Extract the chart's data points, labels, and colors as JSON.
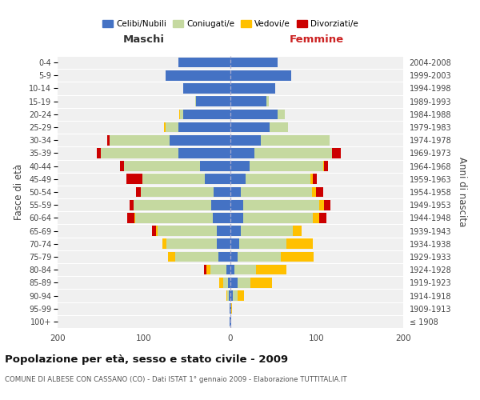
{
  "age_groups": [
    "100+",
    "95-99",
    "90-94",
    "85-89",
    "80-84",
    "75-79",
    "70-74",
    "65-69",
    "60-64",
    "55-59",
    "50-54",
    "45-49",
    "40-44",
    "35-39",
    "30-34",
    "25-29",
    "20-24",
    "15-19",
    "10-14",
    "5-9",
    "0-4"
  ],
  "birth_years": [
    "≤ 1908",
    "1909-1913",
    "1914-1918",
    "1919-1923",
    "1924-1928",
    "1929-1933",
    "1934-1938",
    "1939-1943",
    "1944-1948",
    "1949-1953",
    "1954-1958",
    "1959-1963",
    "1964-1968",
    "1969-1973",
    "1974-1978",
    "1979-1983",
    "1984-1988",
    "1989-1993",
    "1994-1998",
    "1999-2003",
    "2004-2008"
  ],
  "colors": {
    "celibe": "#4472C4",
    "coniugato": "#c5d9a0",
    "vedovo": "#ffc000",
    "divorziato": "#cc0000"
  },
  "maschi": {
    "celibe": [
      1,
      1,
      2,
      3,
      5,
      14,
      16,
      16,
      20,
      22,
      19,
      30,
      35,
      60,
      70,
      60,
      55,
      40,
      55,
      75,
      60
    ],
    "coniugato": [
      0,
      0,
      2,
      5,
      18,
      50,
      58,
      68,
      90,
      90,
      85,
      72,
      88,
      90,
      70,
      15,
      3,
      1,
      0,
      0,
      0
    ],
    "vedovo": [
      0,
      0,
      1,
      5,
      5,
      8,
      5,
      2,
      1,
      0,
      0,
      0,
      0,
      0,
      0,
      2,
      1,
      0,
      0,
      0,
      0
    ],
    "divorziato": [
      0,
      0,
      0,
      0,
      3,
      0,
      0,
      5,
      8,
      5,
      5,
      18,
      5,
      5,
      3,
      0,
      0,
      0,
      0,
      0,
      0
    ]
  },
  "femmine": {
    "nubile": [
      1,
      1,
      3,
      8,
      5,
      8,
      10,
      12,
      15,
      15,
      12,
      18,
      22,
      28,
      35,
      45,
      55,
      42,
      52,
      70,
      55
    ],
    "coniugata": [
      0,
      0,
      5,
      15,
      25,
      50,
      55,
      60,
      80,
      88,
      82,
      75,
      85,
      90,
      80,
      22,
      8,
      2,
      0,
      0,
      0
    ],
    "vedova": [
      0,
      1,
      8,
      25,
      35,
      38,
      30,
      10,
      8,
      5,
      5,
      2,
      1,
      0,
      0,
      0,
      0,
      0,
      0,
      0,
      0
    ],
    "divorziata": [
      0,
      0,
      0,
      0,
      0,
      0,
      0,
      0,
      8,
      8,
      8,
      5,
      5,
      10,
      0,
      0,
      0,
      0,
      0,
      0,
      0
    ]
  },
  "xlim": 200,
  "title": "Popolazione per età, sesso e stato civile - 2009",
  "subtitle": "COMUNE DI ALBESE CON CASSANO (CO) - Dati ISTAT 1° gennaio 2009 - Elaborazione TUTTITALIA.IT",
  "ylabel_left": "Fasce di età",
  "ylabel_right": "Anni di nascita",
  "legend_labels": [
    "Celibi/Nubili",
    "Coniugati/e",
    "Vedovi/e",
    "Divorziati/e"
  ],
  "background_color": "#f0f0f0"
}
